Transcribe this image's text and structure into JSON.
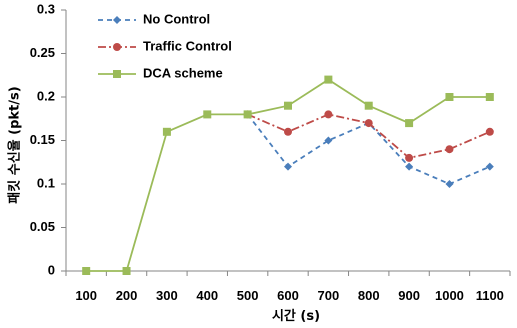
{
  "chart_data": {
    "type": "line",
    "title": "",
    "xlabel": "시간 (s)",
    "ylabel": "패킷 수신율 (pkt/s)",
    "x": [
      100,
      200,
      300,
      400,
      500,
      600,
      700,
      800,
      900,
      1000,
      1100
    ],
    "xtick_labels": [
      "100",
      "200",
      "300",
      "400",
      "500",
      "600",
      "700",
      "800",
      "900",
      "1000",
      "1100"
    ],
    "ylim": [
      0,
      0.3
    ],
    "yticks": [
      0,
      0.05,
      0.1,
      0.15,
      0.2,
      0.25,
      0.3
    ],
    "ytick_labels": [
      "0",
      "0.05",
      "0.1",
      "0.15",
      "0.2",
      "0.25",
      "0.3"
    ],
    "grid": false,
    "legend_position": "top-left",
    "series": [
      {
        "name": "No Control",
        "color": "#4a7ebb",
        "line_style": "dashed",
        "marker": "diamond",
        "start_index": 4,
        "values": [
          0,
          0,
          0.16,
          0.18,
          0.18,
          0.12,
          0.15,
          0.17,
          0.12,
          0.1,
          0.12
        ]
      },
      {
        "name": "Traffic Control",
        "color": "#be4b48",
        "line_style": "dash-dot",
        "marker": "circle",
        "start_index": 4,
        "values": [
          0,
          0,
          0.16,
          0.18,
          0.18,
          0.16,
          0.18,
          0.17,
          0.13,
          0.14,
          0.16
        ]
      },
      {
        "name": "DCA scheme",
        "color": "#9bbb59",
        "line_style": "solid",
        "marker": "square",
        "start_index": 0,
        "values": [
          0,
          0,
          0.16,
          0.18,
          0.18,
          0.19,
          0.22,
          0.19,
          0.17,
          0.2,
          0.2
        ]
      }
    ]
  }
}
